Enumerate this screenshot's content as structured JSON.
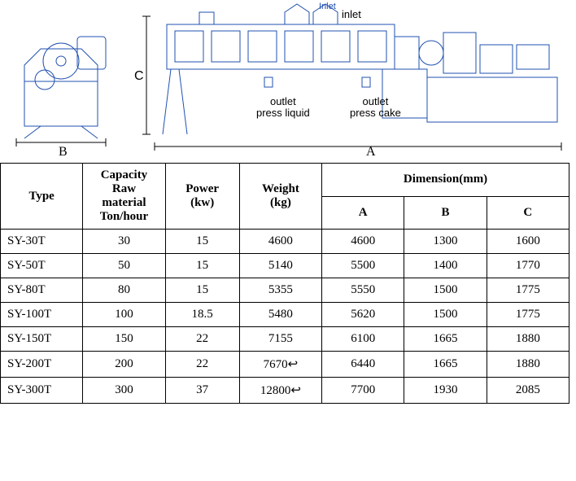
{
  "diagram": {
    "inlet_small": "Inlet",
    "inlet": "inlet",
    "outlet_liquid_l1": "outlet",
    "outlet_liquid_l2": "press liquid",
    "outlet_cake_l1": "outlet",
    "outlet_cake_l2": "press cake",
    "dim_A": "A",
    "dim_B": "B",
    "dim_C": "C",
    "inlet_small_color": "#2050b0",
    "stroke_color": "#2050b0"
  },
  "table": {
    "headers": {
      "type": "Type",
      "capacity_l1": "Capacity",
      "capacity_l2": "Raw",
      "capacity_l3": "material",
      "capacity_l4": "Ton/hour",
      "power_l1": "Power",
      "power_l2": "(kw)",
      "weight_l1": "Weight",
      "weight_l2": "(kg)",
      "dimension": "Dimension(mm)",
      "A": "A",
      "B": "B",
      "C": "C"
    },
    "col_widths": {
      "type": "100px",
      "capacity": "100px",
      "power": "90px",
      "weight": "100px",
      "A": "100px",
      "B": "100px",
      "C": "100px"
    },
    "rows": [
      {
        "type": "SY-30T",
        "capacity": "30",
        "power": "15",
        "weight": "4600",
        "A": "4600",
        "B": "1300",
        "C": "1600"
      },
      {
        "type": "SY-50T",
        "capacity": "50",
        "power": "15",
        "weight": "5140",
        "A": "5500",
        "B": "1400",
        "C": "1770"
      },
      {
        "type": "SY-80T",
        "capacity": "80",
        "power": "15",
        "weight": "5355",
        "A": "5550",
        "B": "1500",
        "C": "1775"
      },
      {
        "type": "SY-100T",
        "capacity": "100",
        "power": "18.5",
        "weight": "5480",
        "A": "5620",
        "B": "1500",
        "C": "1775"
      },
      {
        "type": "SY-150T",
        "capacity": "150",
        "power": "22",
        "weight": "7155",
        "A": "6100",
        "B": "1665",
        "C": "1880"
      },
      {
        "type": "SY-200T",
        "capacity": "200",
        "power": "22",
        "weight": "7670↩",
        "A": "6440",
        "B": "1665",
        "C": "1880"
      },
      {
        "type": "SY-300T",
        "capacity": "300",
        "power": "37",
        "weight": "12800↩",
        "A": "7700",
        "B": "1930",
        "C": "2085"
      }
    ]
  }
}
